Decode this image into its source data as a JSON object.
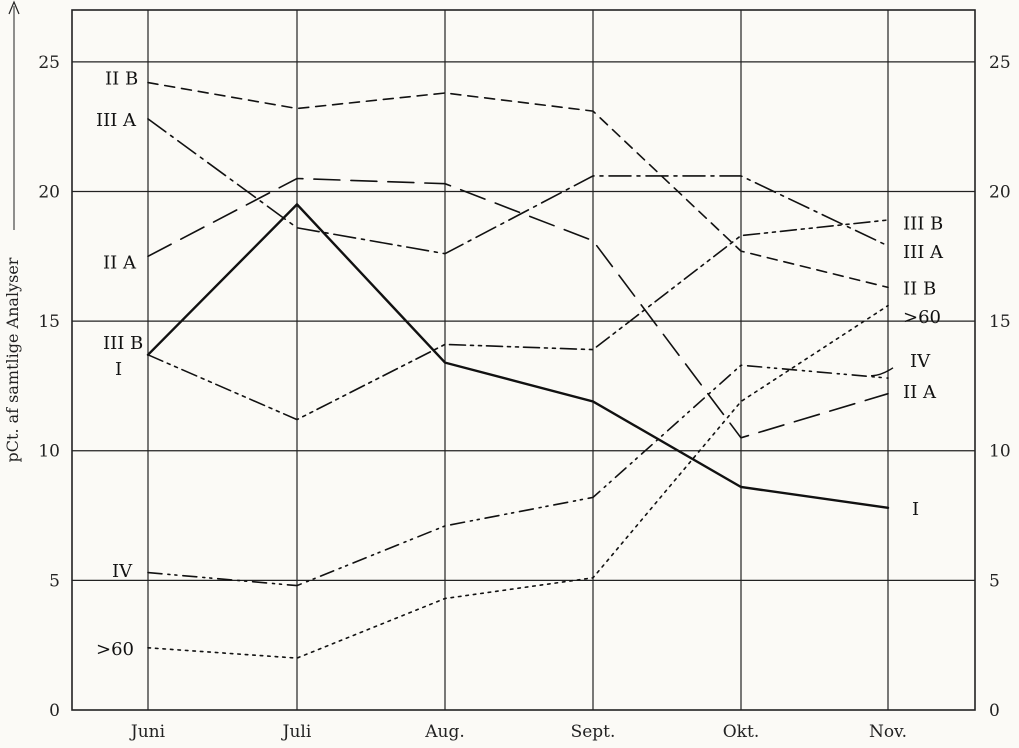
{
  "chart_data": {
    "type": "line",
    "xlabel": "",
    "ylabel": "pCt. af samtlige Analyser",
    "categories": [
      "Juni",
      "Juli",
      "Aug.",
      "Sept.",
      "Okt.",
      "Nov."
    ],
    "ylim": [
      0,
      27
    ],
    "yticks": [
      0,
      5,
      10,
      15,
      20,
      25
    ],
    "grid": true,
    "series": [
      {
        "name": "I",
        "style": "solid",
        "values": [
          13.7,
          19.5,
          13.4,
          11.9,
          8.6,
          7.8
        ]
      },
      {
        "name": "II A",
        "style": "long-dash",
        "values": [
          17.5,
          20.5,
          20.3,
          18.1,
          10.5,
          12.2
        ]
      },
      {
        "name": "II B",
        "style": "dash",
        "values": [
          24.2,
          23.2,
          23.8,
          23.1,
          17.7,
          16.3
        ]
      },
      {
        "name": "III A",
        "style": "dash-dot",
        "values": [
          22.8,
          18.6,
          17.6,
          20.6,
          20.6,
          17.9
        ]
      },
      {
        "name": "III B",
        "style": "dash-dot-dot",
        "values": [
          13.7,
          11.2,
          14.1,
          13.9,
          18.3,
          18.9
        ]
      },
      {
        "name": "IV",
        "style": "dash-dot-dot-2",
        "values": [
          5.3,
          4.8,
          7.1,
          8.2,
          13.3,
          12.8
        ]
      },
      {
        "name": ">60",
        "style": "dotted",
        "values": [
          2.4,
          2.0,
          4.3,
          5.1,
          11.9,
          15.6
        ]
      }
    ],
    "series_labels": {
      "left": [
        "II B",
        "III A",
        "II A",
        "III B",
        "I",
        "IV",
        ">60"
      ],
      "right": [
        "III B",
        "III A",
        "II B",
        ">60",
        "IV",
        "II A",
        "I"
      ]
    }
  }
}
